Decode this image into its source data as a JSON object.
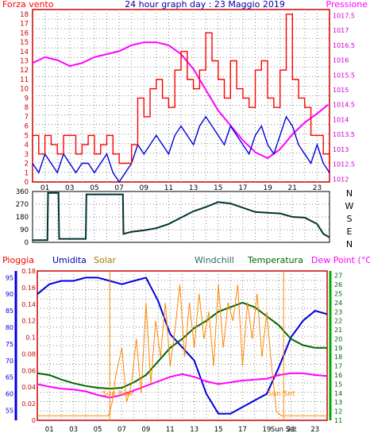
{
  "chart_data": [
    {
      "type": "line",
      "title": "24 hour graph day : 23 Maggio 2019",
      "left_label": "Forza vento",
      "right_label": "Pressione",
      "x_tick_labels": [
        "01",
        "03",
        "05",
        "07",
        "09",
        "11",
        "13",
        "15",
        "17",
        "19",
        "21",
        "23"
      ],
      "y_left_ticks": [
        "0",
        "1",
        "2",
        "3",
        "4",
        "5",
        "6",
        "7",
        "8",
        "9",
        "10",
        "11",
        "12",
        "13",
        "14",
        "15",
        "16",
        "17",
        "18"
      ],
      "y_right_ticks": [
        "1012",
        "1012.5",
        "1013",
        "1013.5",
        "1014",
        "1014.5",
        "1015",
        "1015.5",
        "1016",
        "1016.5",
        "1017",
        "1017.5"
      ],
      "ylim_left": [
        0,
        18.5
      ],
      "ylim_right": [
        1011.9,
        1017.7
      ],
      "xlim": [
        0,
        24
      ],
      "grid": true,
      "colors": {
        "gust": "#ff0000",
        "wind": "#0000dd",
        "pressure": "#ff00ff",
        "frame": "#cc0000"
      },
      "series": [
        {
          "key": "pressure",
          "axis": "right",
          "x": [
            0,
            0.5,
            1,
            2,
            3,
            4,
            5,
            6,
            7,
            8,
            9,
            10,
            11,
            12,
            13,
            14,
            15,
            16,
            17,
            18,
            19,
            20,
            21,
            22,
            23,
            23.9
          ],
          "values": [
            1015.9,
            1016.0,
            1016.1,
            1016.0,
            1015.8,
            1015.9,
            1016.1,
            1016.2,
            1016.3,
            1016.5,
            1016.6,
            1016.6,
            1016.5,
            1016.2,
            1015.7,
            1015.0,
            1014.3,
            1013.8,
            1013.3,
            1012.9,
            1012.7,
            1013.0,
            1013.5,
            1013.9,
            1014.2,
            1014.5
          ]
        },
        {
          "key": "wind",
          "axis": "left",
          "x": [
            0,
            0.5,
            1,
            1.5,
            2,
            2.5,
            3,
            3.5,
            4,
            4.5,
            5,
            5.5,
            6,
            6.5,
            7,
            7.5,
            8,
            8.5,
            9,
            9.5,
            10,
            10.5,
            11,
            11.5,
            12,
            12.5,
            13,
            13.5,
            14,
            14.5,
            15,
            15.5,
            16,
            16.5,
            17,
            17.5,
            18,
            18.5,
            19,
            19.5,
            20,
            20.5,
            21,
            21.5,
            22,
            22.5,
            23,
            23.5,
            24
          ],
          "values": [
            2,
            1,
            3,
            2,
            1,
            3,
            2,
            1,
            2,
            2,
            1,
            2,
            3,
            1,
            0,
            1,
            2,
            4,
            3,
            4,
            5,
            4,
            3,
            5,
            6,
            5,
            4,
            6,
            7,
            6,
            5,
            4,
            6,
            5,
            4,
            3,
            5,
            6,
            4,
            3,
            5,
            7,
            6,
            4,
            3,
            2,
            4,
            2,
            1
          ]
        },
        {
          "key": "gust",
          "axis": "left",
          "x": [
            0,
            0.5,
            1,
            1.5,
            2,
            2.5,
            3,
            3.5,
            4,
            4.5,
            5,
            5.5,
            6,
            6.5,
            7,
            7.5,
            8,
            8.5,
            9,
            9.5,
            10,
            10.5,
            11,
            11.5,
            12,
            12.5,
            13,
            13.5,
            14,
            14.5,
            15,
            15.5,
            16,
            16.5,
            17,
            17.5,
            18,
            18.5,
            19,
            19.5,
            20,
            20.5,
            21,
            21.5,
            22,
            22.5,
            23,
            23.5,
            24
          ],
          "values": [
            5,
            3,
            5,
            4,
            3,
            5,
            5,
            3,
            4,
            5,
            3,
            4,
            5,
            3,
            2,
            2,
            4,
            9,
            7,
            10,
            11,
            9,
            8,
            12,
            14,
            11,
            10,
            12,
            16,
            13,
            11,
            9,
            13,
            10,
            9,
            8,
            12,
            13,
            9,
            8,
            12,
            18,
            11,
            9,
            8,
            5,
            5,
            3,
            2
          ]
        }
      ]
    },
    {
      "type": "line",
      "right_labels": [
        "N",
        "W",
        "S",
        "E",
        "N"
      ],
      "y_left_ticks": [
        "0",
        "90",
        "180",
        "270",
        "360"
      ],
      "ylim": [
        0,
        360
      ],
      "xlim": [
        0,
        24
      ],
      "colors": {
        "direction": "#003333"
      },
      "series": [
        {
          "key": "direction",
          "x": [
            0,
            1.2,
            1.25,
            2.1,
            2.15,
            4.3,
            4.35,
            7.3,
            7.35,
            8,
            9,
            10,
            11,
            12,
            13,
            14,
            15,
            16,
            17,
            18,
            19,
            20,
            21,
            22,
            23,
            23.5,
            24
          ],
          "values": [
            15,
            15,
            350,
            350,
            25,
            25,
            340,
            340,
            60,
            75,
            85,
            100,
            130,
            175,
            220,
            250,
            285,
            275,
            245,
            215,
            210,
            205,
            180,
            175,
            130,
            60,
            35
          ]
        }
      ]
    },
    {
      "type": "line",
      "legend": [
        "Pioggia",
        "Umidita",
        "Solar",
        "Windchill",
        "Temperatura",
        "Dew Point (°C)"
      ],
      "left_axis_ticks": [
        "0",
        "0.02",
        "0.04",
        "0.06",
        "0.08",
        "0.1",
        "0.12",
        "0.14",
        "0.16",
        "0.18"
      ],
      "humidity_ticks": [
        "55",
        "60",
        "65",
        "70",
        "75",
        "80",
        "85",
        "90",
        "95"
      ],
      "temp_ticks": [
        "11",
        "12",
        "13",
        "14",
        "15",
        "16",
        "17",
        "18",
        "19",
        "20",
        "21",
        "22",
        "23",
        "24",
        "25",
        "26",
        "27"
      ],
      "x_tick_labels": [
        "01",
        "03",
        "05",
        "07",
        "09",
        "11",
        "13",
        "15",
        "17",
        "19",
        "Sun Set",
        "21",
        "23"
      ],
      "annotations": [
        "Sun Rise",
        "Sun Set"
      ],
      "ylim_humidity": [
        52,
        97
      ],
      "ylim_temperature": [
        11,
        27.5
      ],
      "xlim": [
        0,
        24
      ],
      "colors": {
        "rain": "#ff0000",
        "humidity": "#0000dd",
        "solar": "#ff8800",
        "temperature": "#006600",
        "dew_point": "#ff00ff",
        "frame": "#cc0000"
      },
      "series": [
        {
          "key": "humidity",
          "x": [
            0,
            1,
            2,
            3,
            4,
            5,
            6,
            7,
            8,
            9,
            10,
            11,
            12,
            13,
            14,
            15,
            16,
            17,
            18,
            19,
            20,
            21,
            22,
            23,
            24
          ],
          "values": [
            90,
            93,
            94,
            94,
            95,
            95,
            94,
            93,
            94,
            95,
            88,
            78,
            74,
            70,
            60,
            54,
            54,
            56,
            58,
            60,
            68,
            77,
            82,
            85,
            84
          ]
        },
        {
          "key": "temperature",
          "x": [
            0,
            1,
            2,
            3,
            4,
            5,
            6,
            7,
            8,
            9,
            10,
            11,
            12,
            13,
            14,
            15,
            16,
            17,
            18,
            19,
            20,
            21,
            22,
            23,
            24
          ],
          "values": [
            16.2,
            16,
            15.5,
            15.1,
            14.8,
            14.6,
            14.5,
            14.6,
            15.2,
            16.0,
            17.5,
            19.0,
            20.0,
            21.2,
            22.0,
            23.0,
            23.5,
            24.0,
            23.5,
            22.5,
            21.5,
            20.0,
            19.3,
            19.0,
            19.0
          ]
        },
        {
          "key": "dew_point",
          "x": [
            0,
            1,
            2,
            3,
            4,
            5,
            6,
            7,
            8,
            9,
            10,
            11,
            12,
            13,
            14,
            15,
            16,
            17,
            18,
            19,
            20,
            21,
            22,
            23,
            24
          ],
          "values": [
            15,
            14.7,
            14.5,
            14.4,
            14.2,
            13.8,
            13.5,
            13.8,
            14.3,
            14.8,
            15.3,
            15.8,
            16.1,
            15.8,
            15.3,
            15.0,
            15.2,
            15.4,
            15.5,
            15.6,
            16.0,
            16.2,
            16.2,
            16.0,
            15.9
          ]
        },
        {
          "key": "solar",
          "x": [
            0,
            5.9,
            6.2,
            6.5,
            7,
            7.4,
            7.8,
            8.2,
            8.6,
            9,
            9.4,
            9.8,
            10.2,
            10.6,
            11,
            11.4,
            11.8,
            12.2,
            12.6,
            13,
            13.4,
            13.8,
            14.2,
            14.6,
            15,
            15.4,
            15.8,
            16.2,
            16.6,
            17,
            17.4,
            17.8,
            18.2,
            18.6,
            19,
            19.4,
            19.8,
            20.2,
            24
          ],
          "values": [
            11.5,
            11.5,
            13,
            16,
            19,
            13,
            15,
            20,
            14,
            24,
            15,
            22,
            18,
            24,
            17,
            21,
            26,
            18,
            24,
            19,
            25,
            20,
            23,
            17,
            26,
            19,
            24,
            22,
            26,
            17,
            24,
            20,
            25,
            18,
            23,
            17,
            12,
            11.5,
            11.5
          ]
        }
      ]
    }
  ]
}
